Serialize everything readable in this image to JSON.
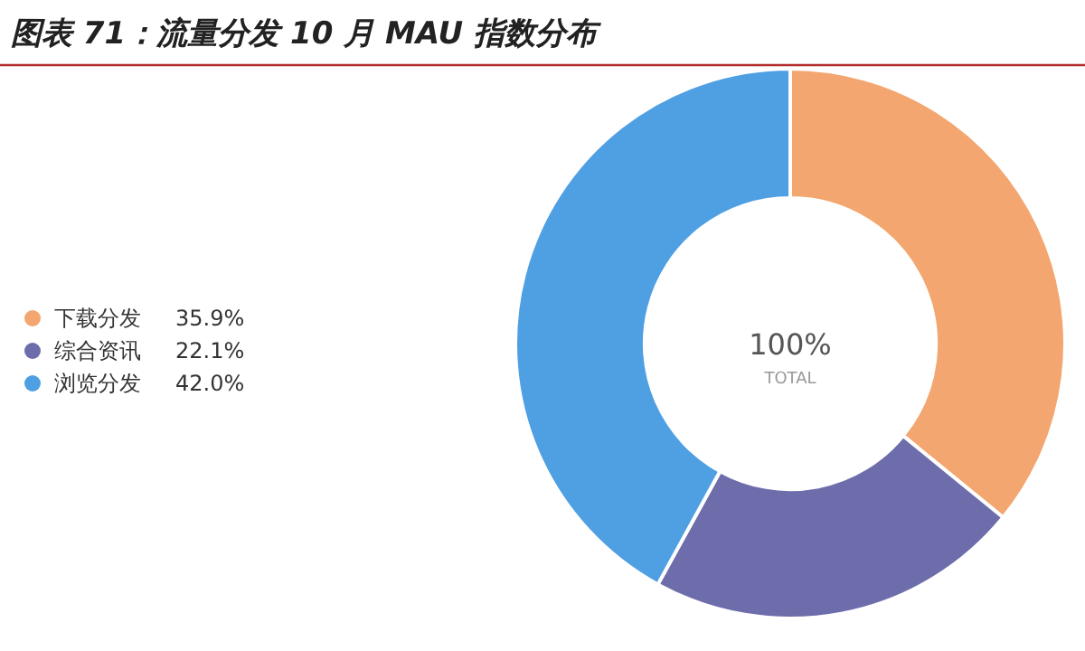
{
  "chart_data": {
    "type": "donut",
    "title": "图表 71：流量分发 10 月 MAU 指数分布",
    "categories": [
      "下载分发",
      "综合资讯",
      "浏览分发"
    ],
    "values": [
      35.9,
      22.1,
      42.0
    ],
    "colors": [
      "#f3a66f",
      "#6e6dab",
      "#4f9fe3"
    ],
    "value_labels": [
      "35.9%",
      "22.1%",
      "42.0%"
    ],
    "legend": "left",
    "annotations": [
      "100%",
      "TOTAL"
    ]
  }
}
